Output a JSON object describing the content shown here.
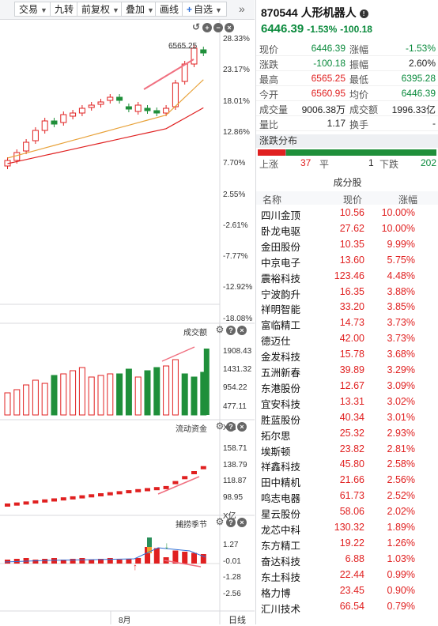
{
  "toolbar": {
    "items": [
      {
        "label": "交易",
        "caret": true
      },
      {
        "label": "九转",
        "caret": false
      },
      {
        "label": "前复权",
        "caret": true
      },
      {
        "label": "叠加",
        "caret": true
      },
      {
        "label": "画线",
        "caret": false
      },
      {
        "label": "自选",
        "caret": true
      }
    ],
    "collapse_glyph": "»"
  },
  "chart": {
    "price_axis": [
      "28.33%",
      "23.17%",
      "18.01%",
      "12.86%",
      "7.70%",
      "2.55%",
      "-2.61%",
      "-7.77%",
      "-12.92%",
      "-18.08%"
    ],
    "high_label": "6565.25",
    "volume": {
      "title": "成交额",
      "axis": [
        "1908.43",
        "1431.32",
        "954.22",
        "477.11",
        "X亿"
      ]
    },
    "flow": {
      "title": "流动资金",
      "axis": [
        "158.71",
        "138.79",
        "118.87",
        "98.95",
        "X亿"
      ]
    },
    "capture": {
      "title": "捕捞季节",
      "axis": [
        "1.27",
        "-0.01",
        "-1.28",
        "-2.56"
      ]
    },
    "x_label": "8月",
    "x_right": "日线",
    "colors": {
      "up": "#e02020",
      "down": "#1f8f3a",
      "ma1": "#e8a23a",
      "ma2": "#e02020"
    }
  },
  "stock": {
    "title": "870544 人形机器人",
    "price": "6446.39",
    "change_pct": "-1.53%",
    "change": "-100.18"
  },
  "quote": [
    {
      "l1": "现价",
      "v1": "6446.39",
      "c1": "green",
      "l2": "涨幅",
      "v2": "-1.53%",
      "c2": "green"
    },
    {
      "l1": "涨跌",
      "v1": "-100.18",
      "c1": "green",
      "l2": "振幅",
      "v2": "2.60%",
      "c2": "dark"
    },
    {
      "l1": "最高",
      "v1": "6565.25",
      "c1": "red",
      "l2": "最低",
      "v2": "6395.28",
      "c2": "green"
    },
    {
      "l1": "今开",
      "v1": "6560.95",
      "c1": "red",
      "l2": "均价",
      "v2": "6446.39",
      "c2": "green"
    },
    {
      "l1": "成交量",
      "v1": "9006.38万",
      "c1": "dark",
      "l2": "成交额",
      "v2": "1996.33亿",
      "c2": "dark"
    },
    {
      "l1": "量比",
      "v1": "1.17",
      "c1": "dark",
      "l2": "换手",
      "v2": "-",
      "c2": "dark"
    }
  ],
  "distribution": {
    "title": "涨跌分布",
    "up_label": "上涨",
    "up": "37",
    "flat_label": "平",
    "flat": "1",
    "down_label": "下跌",
    "down": "202",
    "up_count": 37,
    "flat_count": 1,
    "down_count": 202
  },
  "components": {
    "title": "成分股",
    "headers": {
      "name": "名称",
      "price": "现价",
      "change": "涨幅"
    },
    "rows": [
      {
        "name": "四川金顶",
        "price": "10.56",
        "change": "10.00%"
      },
      {
        "name": "卧龙电驱",
        "price": "27.62",
        "change": "10.00%"
      },
      {
        "name": "金田股份",
        "price": "10.35",
        "change": "9.99%"
      },
      {
        "name": "中京电子",
        "price": "13.60",
        "change": "5.75%"
      },
      {
        "name": "震裕科技",
        "price": "123.46",
        "change": "4.48%"
      },
      {
        "name": "宁波韵升",
        "price": "16.35",
        "change": "3.88%"
      },
      {
        "name": "祥明智能",
        "price": "33.20",
        "change": "3.85%"
      },
      {
        "name": "富临精工",
        "price": "14.73",
        "change": "3.73%"
      },
      {
        "name": "德迈仕",
        "price": "42.00",
        "change": "3.73%"
      },
      {
        "name": "金发科技",
        "price": "15.78",
        "change": "3.68%"
      },
      {
        "name": "五洲新春",
        "price": "39.89",
        "change": "3.29%"
      },
      {
        "name": "东港股份",
        "price": "12.67",
        "change": "3.09%"
      },
      {
        "name": "宜安科技",
        "price": "13.31",
        "change": "3.02%"
      },
      {
        "name": "胜蓝股份",
        "price": "40.34",
        "change": "3.01%"
      },
      {
        "name": "拓尔思",
        "price": "25.32",
        "change": "2.93%"
      },
      {
        "name": "埃斯顿",
        "price": "23.82",
        "change": "2.81%"
      },
      {
        "name": "祥鑫科技",
        "price": "45.80",
        "change": "2.58%"
      },
      {
        "name": "田中精机",
        "price": "21.66",
        "change": "2.56%"
      },
      {
        "name": "鸣志电器",
        "price": "61.73",
        "change": "2.52%"
      },
      {
        "name": "星云股份",
        "price": "58.06",
        "change": "2.02%"
      },
      {
        "name": "龙芯中科",
        "price": "130.32",
        "change": "1.89%"
      },
      {
        "name": "东方精工",
        "price": "19.22",
        "change": "1.26%"
      },
      {
        "name": "奋达科技",
        "price": "6.88",
        "change": "1.03%"
      },
      {
        "name": "东土科技",
        "price": "22.44",
        "change": "0.99%"
      },
      {
        "name": "格力博",
        "price": "23.45",
        "change": "0.90%"
      },
      {
        "name": "汇川技术",
        "price": "66.54",
        "change": "0.79%"
      }
    ]
  }
}
